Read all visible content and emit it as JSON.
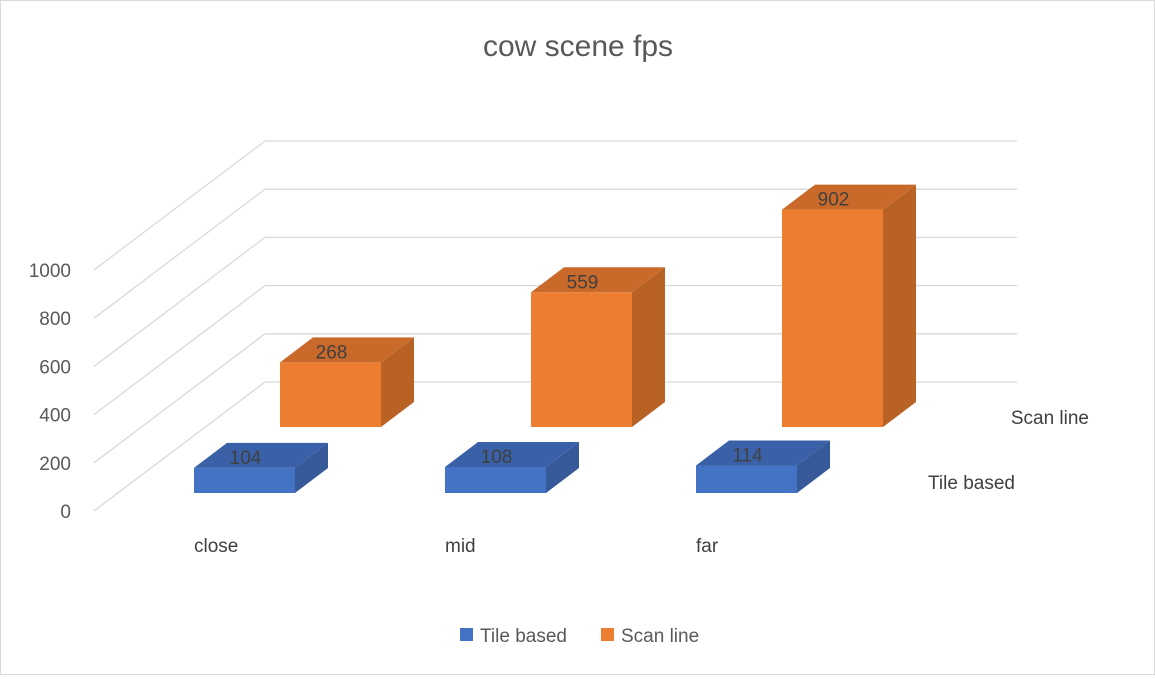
{
  "chart_data": {
    "type": "bar",
    "subtype": "3d-column",
    "title": "cow scene fps",
    "categories": [
      "close",
      "mid",
      "far"
    ],
    "series": [
      {
        "name": "Tile based",
        "values": [
          104,
          108,
          114
        ],
        "color": "#4472C4"
      },
      {
        "name": "Scan line",
        "values": [
          268,
          559,
          902
        ],
        "color": "#ED7D31"
      }
    ],
    "yticks": [
      "0",
      "200",
      "400",
      "600",
      "800",
      "1000"
    ],
    "ylim": [
      0,
      1000
    ],
    "grid": true,
    "legend": "bottom"
  }
}
